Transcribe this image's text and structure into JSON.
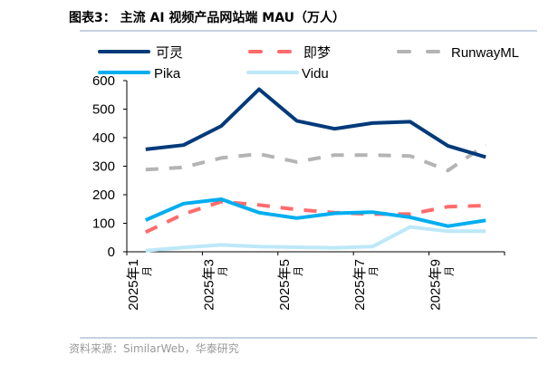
{
  "title": "图表3：  主流 AI 视频产品网站端 MAU（万人）",
  "source": "资料来源：SimilarWeb，华泰研究",
  "chart_data": {
    "type": "line",
    "title": "图表3：  主流 AI 视频产品网站端 MAU（万人）",
    "xlabel": "",
    "ylabel": "",
    "ylim": [
      0,
      600
    ],
    "yticks": [
      0,
      100,
      200,
      300,
      400,
      500,
      600
    ],
    "categories": [
      "2025年1月",
      "2025年2月",
      "2025年3月",
      "2025年4月",
      "2025年5月",
      "2025年6月",
      "2025年7月",
      "2025年8月",
      "2025年9月",
      "2025年10月"
    ],
    "xtick_labels": [
      {
        "line1": "2025年1",
        "line2": "月"
      },
      {
        "line1": "2025年3",
        "line2": "月"
      },
      {
        "line1": "2025年5",
        "line2": "月"
      },
      {
        "line1": "2025年7",
        "line2": "月"
      },
      {
        "line1": "2025年9",
        "line2": "月"
      }
    ],
    "grid": false,
    "legend_position": "top",
    "series": [
      {
        "name": "可灵",
        "color": "#003A7A",
        "dash": false,
        "values": [
          359,
          374,
          441,
          570,
          459,
          431,
          451,
          456,
          371,
          332
        ]
      },
      {
        "name": "即梦",
        "color": "#FF6B6B",
        "dash": true,
        "values": [
          69,
          132,
          176,
          164,
          148,
          137,
          132,
          132,
          158,
          162
        ]
      },
      {
        "name": "RunwayML",
        "color": "#B4B4B4",
        "dash": true,
        "values": [
          288,
          296,
          329,
          343,
          315,
          339,
          339,
          336,
          285,
          375
        ]
      },
      {
        "name": "Pika",
        "color": "#00AEEF",
        "dash": false,
        "values": [
          111,
          169,
          184,
          137,
          118,
          135,
          139,
          121,
          90,
          110
        ]
      },
      {
        "name": "Vidu",
        "color": "#BDE8F8",
        "dash": false,
        "values": [
          4,
          15,
          24,
          18,
          16,
          14,
          18,
          87,
          72,
          72
        ]
      }
    ]
  }
}
